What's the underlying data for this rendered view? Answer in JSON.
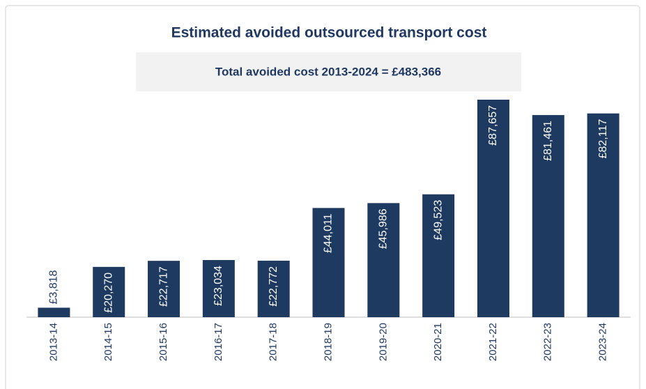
{
  "chart_data": {
    "type": "bar",
    "title": "Estimated avoided outsourced transport cost",
    "subtitle": "Total avoided cost 2013-2024 = £483,366",
    "categories": [
      "2013-14",
      "2014-15",
      "2015-16",
      "2016-17",
      "2017-18",
      "2018-19",
      "2019-20",
      "2020-21",
      "2021-22",
      "2022-23",
      "2023-24"
    ],
    "values": [
      3818,
      20270,
      22717,
      23034,
      22772,
      44011,
      45986,
      49523,
      87657,
      81461,
      82117
    ],
    "value_labels": [
      "£3,818",
      "£20,270",
      "£22,717",
      "£23,034",
      "£22,772",
      "£44,011",
      "£45,986",
      "£49,523",
      "£87,657",
      "£81,461",
      "£82,117"
    ],
    "color": "#1f3a60"
  }
}
